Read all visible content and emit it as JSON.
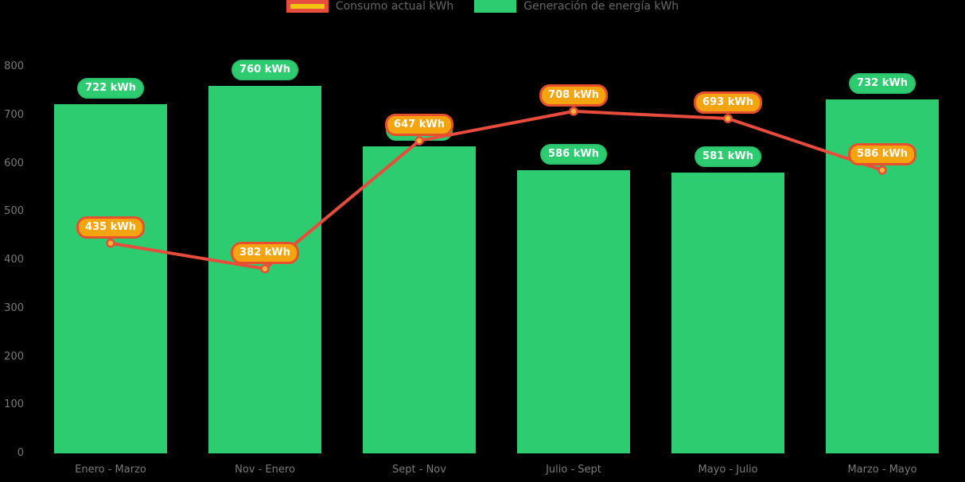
{
  "chart_data": {
    "type": "bar+line",
    "title": "",
    "categories": [
      "Enero - Marzo",
      "Nov - Enero",
      "Sept - Nov",
      "Julio - Sept",
      "Mayo - Julio",
      "Marzo - Mayo"
    ],
    "series": [
      {
        "name": "Generación de energía kWh",
        "type": "bar",
        "color": "#2ecc71",
        "values": [
          722,
          760,
          635,
          586,
          581,
          732
        ],
        "labels": [
          "722 kWh",
          "760 kWh",
          "635 kWh",
          "586 kWh",
          "581 kWh",
          "732 kWh"
        ],
        "unit": "kWh"
      },
      {
        "name": "Consumo actual kWh",
        "type": "line",
        "color": "#e74c3c",
        "marker_fill": "#f5b731",
        "values": [
          435,
          382,
          647,
          708,
          693,
          586
        ],
        "labels": [
          "435 kWh",
          "382 kWh",
          "647 kWh",
          "708 kWh",
          "693 kWh",
          "586 kWh"
        ],
        "unit": "kWh"
      }
    ],
    "xlabel": "",
    "ylabel": "",
    "ylim": [
      0,
      800
    ],
    "yticks": [
      0,
      100,
      200,
      300,
      400,
      500,
      600,
      700,
      800
    ],
    "grid": false,
    "legend_position": "top-center",
    "background": "#000000"
  },
  "legend": {
    "items": [
      {
        "label": "Consumo actual kWh",
        "swatch": "red-bordered-yellow"
      },
      {
        "label": "Generación de energía kWh",
        "swatch": "green"
      }
    ]
  },
  "colors": {
    "bar_green": "#2ecc71",
    "line_red": "#e74c3c",
    "pill_orange_fill": "#f3a40f",
    "pill_orange_border": "#e84f2d",
    "legend_yellow": "#f1c40f",
    "axis_text": "#7a7a7a",
    "background": "#000000"
  }
}
